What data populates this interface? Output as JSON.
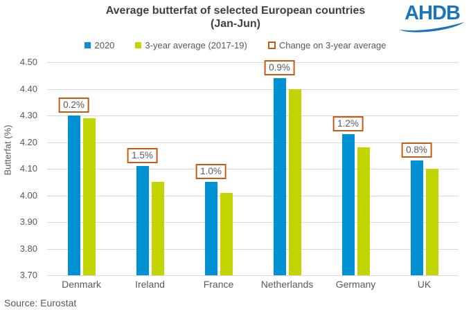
{
  "header": {
    "title_line1": "Average butterfat of selected European countries",
    "title_line2": "(Jan-Jun)"
  },
  "logo": {
    "text": "AHDB"
  },
  "legend": {
    "items": [
      {
        "label": "2020",
        "style": "fill",
        "color": "#0090D4"
      },
      {
        "label": "3-year average (2017-19)",
        "style": "fill",
        "color": "#C3D500"
      },
      {
        "label": "Change on 3-year average",
        "style": "outline",
        "color": "#C55A11"
      }
    ]
  },
  "source": {
    "text": "Source: Eurostat"
  },
  "colors": {
    "series_2020": "#0090D4",
    "series_avg": "#C3D500",
    "change_box_border": "#C55A11",
    "title_text": "#404040",
    "axis_text": "#595959",
    "gridline": "#D9D9D9",
    "logo_blue": "#1C75BC"
  },
  "chart_data": {
    "type": "bar",
    "title": "Average butterfat of selected European countries (Jan-Jun)",
    "categories": [
      "Denmark",
      "Ireland",
      "France",
      "Netherlands",
      "Germany",
      "UK"
    ],
    "series": [
      {
        "name": "2020",
        "color": "#0090D4",
        "values": [
          4.3,
          4.11,
          4.05,
          4.44,
          4.23,
          4.13
        ]
      },
      {
        "name": "3-year average (2017-19)",
        "color": "#C3D500",
        "values": [
          4.29,
          4.05,
          4.01,
          4.4,
          4.18,
          4.1
        ]
      }
    ],
    "change_labels": [
      "0.2%",
      "1.5%",
      "1.0%",
      "0.9%",
      "1.2%",
      "0.8%"
    ],
    "xlabel": "",
    "ylabel": "Butterfat (%)",
    "ylim": [
      3.7,
      4.5
    ],
    "yticks": [
      "4.50",
      "4.40",
      "4.30",
      "4.20",
      "4.10",
      "4.00",
      "3.90",
      "3.80",
      "3.70"
    ],
    "grid": "horizontal",
    "legend_position": "top",
    "source": "Source: Eurostat"
  }
}
